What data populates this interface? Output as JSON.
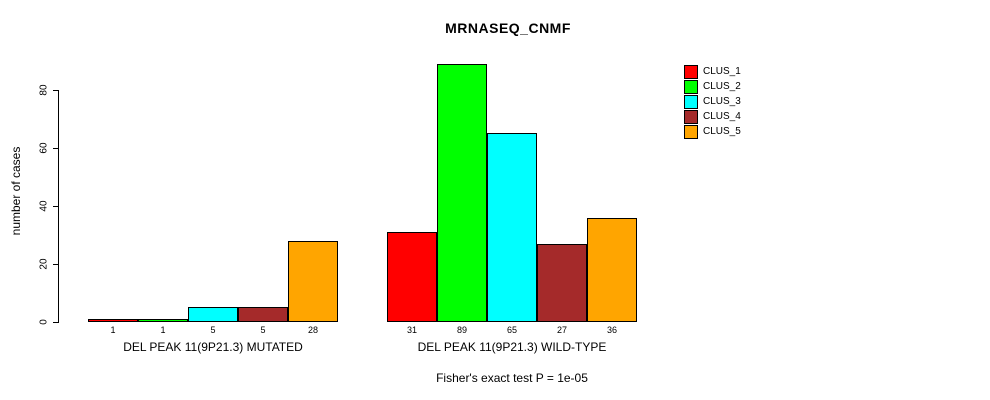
{
  "title": "MRNASEQ_CNMF",
  "footer": "Fisher's exact test P = 1e-05",
  "chart_data": {
    "type": "bar",
    "title": "MRNASEQ_CNMF",
    "xlabel": "",
    "ylabel": "number of cases",
    "ylim": [
      0,
      89
    ],
    "yticks": [
      0,
      20,
      40,
      60,
      80
    ],
    "grid": false,
    "legend_position": "right",
    "bar_value_labels_shown": true,
    "categories": [
      "DEL PEAK 11(9P21.3) MUTATED",
      "DEL PEAK 11(9P21.3) WILD-TYPE"
    ],
    "series": [
      {
        "name": "CLUS_1",
        "color": "#FF0000",
        "values": [
          1,
          31
        ]
      },
      {
        "name": "CLUS_2",
        "color": "#00FF00",
        "values": [
          1,
          89
        ]
      },
      {
        "name": "CLUS_3",
        "color": "#00FFFF",
        "values": [
          5,
          65
        ]
      },
      {
        "name": "CLUS_4",
        "color": "#A52A2A",
        "values": [
          5,
          27
        ]
      },
      {
        "name": "CLUS_5",
        "color": "#FFA500",
        "values": [
          28,
          36
        ]
      }
    ],
    "annotation": "Fisher's exact test P = 1e-05"
  }
}
